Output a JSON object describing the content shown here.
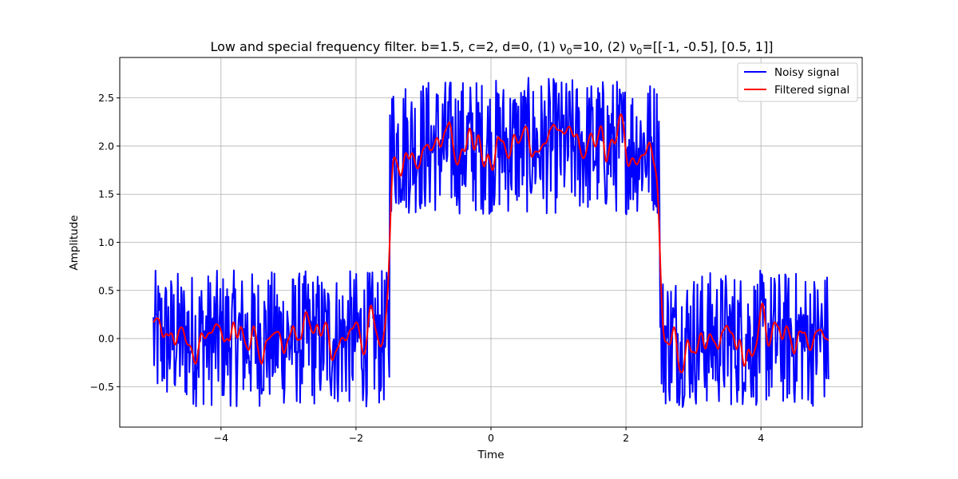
{
  "chart_data": {
    "type": "line",
    "title": "Low and special frequency filter. b=1.5, c=2, d=0, (1) ν",
    "title_sub1": "0",
    "title_mid": "=10, (2) ν",
    "title_sub2": "0",
    "title_end": "=[[-1, -0.5], [0.5, 1]]",
    "xlabel": "Time",
    "ylabel": "Amplitude",
    "xlim": [
      -5.5,
      5.5
    ],
    "ylim": [
      -0.92,
      2.92
    ],
    "xticks": [
      -4,
      -2,
      0,
      2,
      4
    ],
    "xtick_labels": [
      "−4",
      "−2",
      "0",
      "2",
      "4"
    ],
    "yticks": [
      -0.5,
      0.0,
      0.5,
      1.0,
      1.5,
      2.0,
      2.5
    ],
    "ytick_labels": [
      "−0.5",
      "0.0",
      "0.5",
      "1.0",
      "1.5",
      "2.0",
      "2.5"
    ],
    "grid": true,
    "legend_position": "top-right",
    "signal": {
      "x_range": [
        -5,
        5
      ],
      "base_level": 0,
      "pulse_level": 2,
      "pulse_start": -1.5,
      "pulse_end": 2.5,
      "noise_amplitude": 0.75
    },
    "series": [
      {
        "name": "Noisy signal",
        "color": "#0000ff"
      },
      {
        "name": "Filtered signal",
        "color": "#ff0000"
      }
    ]
  }
}
